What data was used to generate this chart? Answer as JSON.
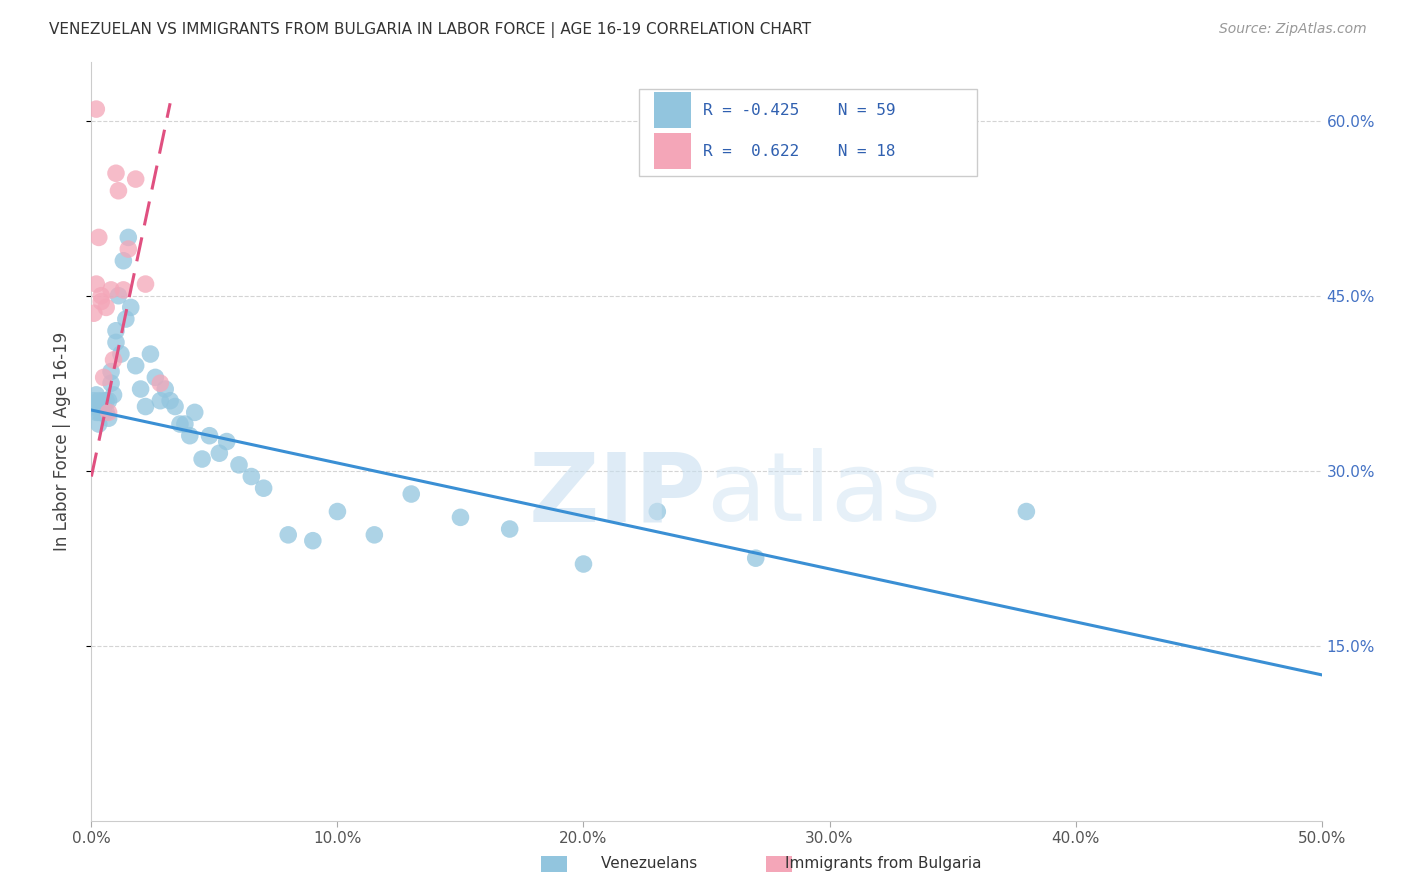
{
  "title": "VENEZUELAN VS IMMIGRANTS FROM BULGARIA IN LABOR FORCE | AGE 16-19 CORRELATION CHART",
  "source": "Source: ZipAtlas.com",
  "ylabel": "In Labor Force | Age 16-19",
  "xlim": [
    0.0,
    0.5
  ],
  "ylim": [
    0.0,
    0.65
  ],
  "venezuelan_R": "-0.425",
  "venezuelan_N": "59",
  "bulgarian_R": "0.622",
  "bulgarian_N": "18",
  "blue_color": "#92c5de",
  "pink_color": "#f4a6b8",
  "blue_line_color": "#3a8fd4",
  "pink_line_color": "#e05080",
  "pink_line_dash": [
    6,
    3
  ],
  "venezuelan_x": [
    0.001,
    0.001,
    0.002,
    0.002,
    0.002,
    0.003,
    0.003,
    0.003,
    0.004,
    0.004,
    0.005,
    0.005,
    0.005,
    0.006,
    0.006,
    0.007,
    0.007,
    0.008,
    0.008,
    0.009,
    0.01,
    0.01,
    0.011,
    0.012,
    0.013,
    0.014,
    0.015,
    0.016,
    0.018,
    0.02,
    0.022,
    0.024,
    0.026,
    0.028,
    0.03,
    0.032,
    0.034,
    0.036,
    0.038,
    0.04,
    0.042,
    0.045,
    0.048,
    0.052,
    0.055,
    0.06,
    0.065,
    0.07,
    0.08,
    0.09,
    0.1,
    0.115,
    0.13,
    0.15,
    0.17,
    0.2,
    0.23,
    0.27,
    0.38
  ],
  "venezuelan_y": [
    0.355,
    0.36,
    0.35,
    0.355,
    0.365,
    0.34,
    0.35,
    0.36,
    0.35,
    0.355,
    0.35,
    0.355,
    0.36,
    0.35,
    0.36,
    0.345,
    0.36,
    0.375,
    0.385,
    0.365,
    0.42,
    0.41,
    0.45,
    0.4,
    0.48,
    0.43,
    0.5,
    0.44,
    0.39,
    0.37,
    0.355,
    0.4,
    0.38,
    0.36,
    0.37,
    0.36,
    0.355,
    0.34,
    0.34,
    0.33,
    0.35,
    0.31,
    0.33,
    0.315,
    0.325,
    0.305,
    0.295,
    0.285,
    0.245,
    0.24,
    0.265,
    0.245,
    0.28,
    0.26,
    0.25,
    0.22,
    0.265,
    0.225,
    0.265
  ],
  "bulgarian_x": [
    0.001,
    0.002,
    0.002,
    0.003,
    0.004,
    0.004,
    0.005,
    0.006,
    0.007,
    0.008,
    0.009,
    0.01,
    0.011,
    0.013,
    0.015,
    0.018,
    0.022,
    0.028
  ],
  "bulgarian_y": [
    0.435,
    0.61,
    0.46,
    0.5,
    0.445,
    0.45,
    0.38,
    0.44,
    0.35,
    0.455,
    0.395,
    0.555,
    0.54,
    0.455,
    0.49,
    0.55,
    0.46,
    0.375
  ]
}
